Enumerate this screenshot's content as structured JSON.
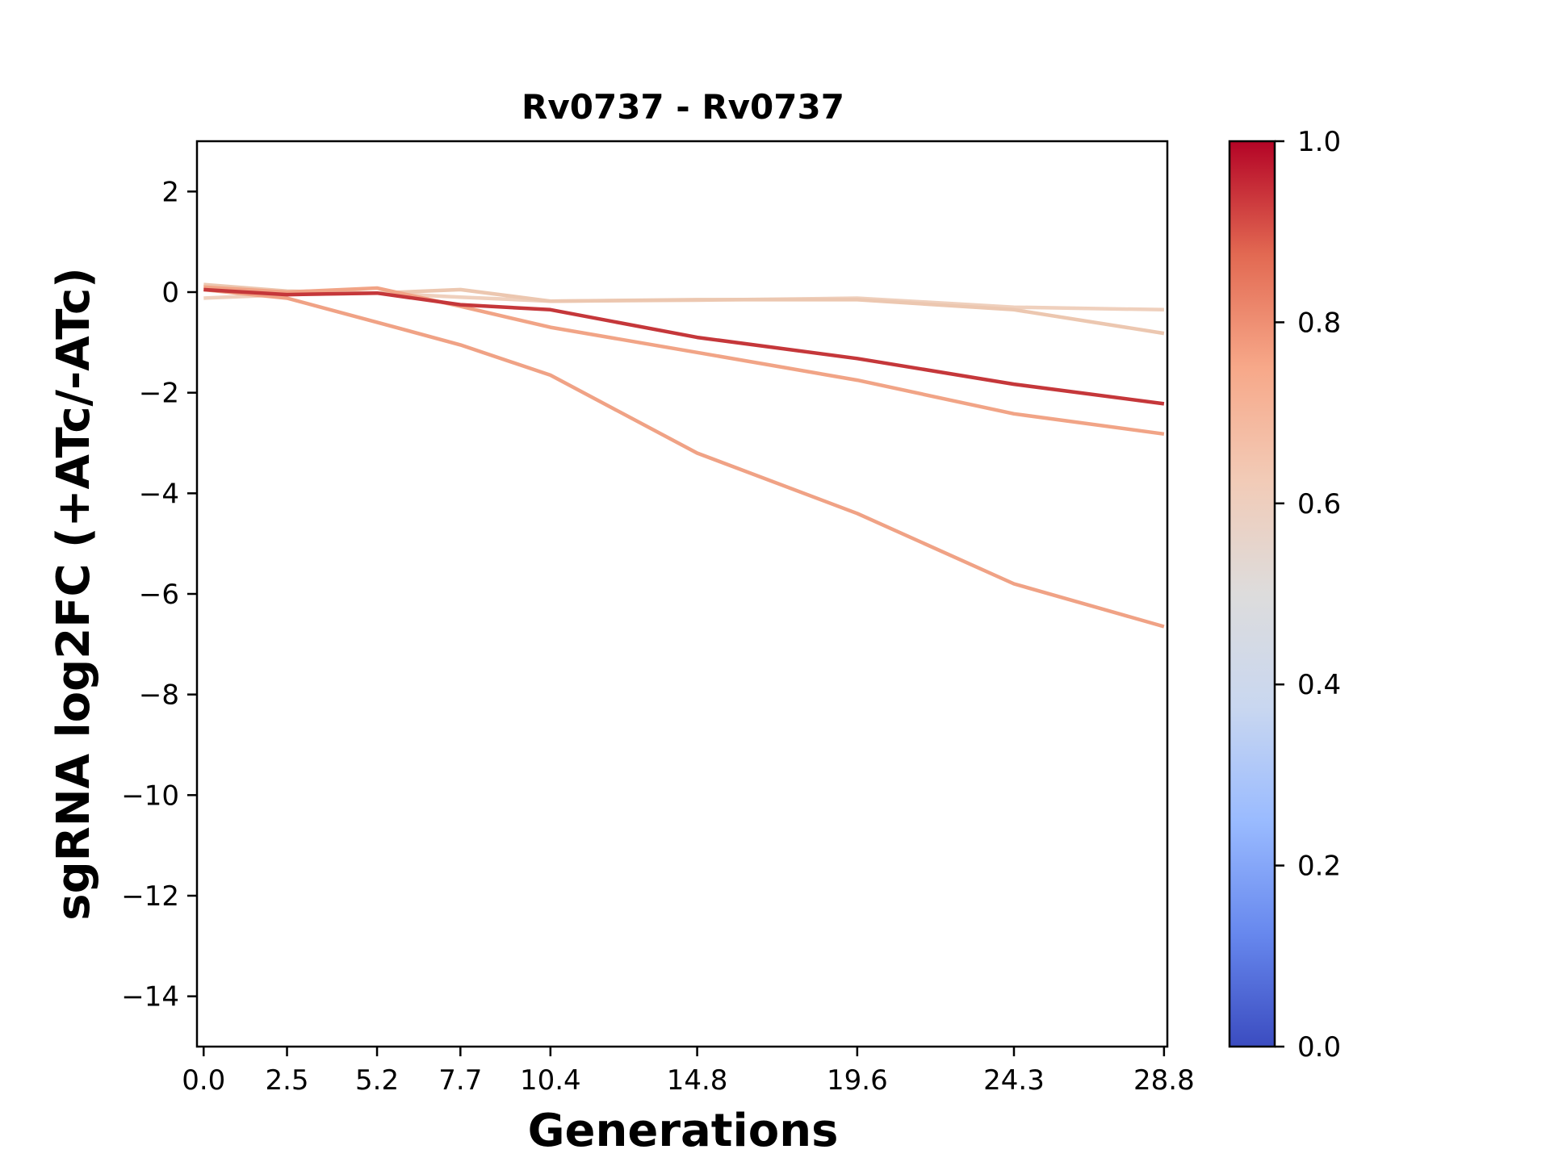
{
  "chart_data": {
    "type": "line",
    "title": "Rv0737 - Rv0737",
    "xlabel": "Generations",
    "ylabel": "sgRNA log2FC (+ATc/-ATc)",
    "x": [
      0.0,
      2.5,
      5.2,
      7.7,
      10.4,
      14.8,
      19.6,
      24.3,
      28.8
    ],
    "x_tick_labels": [
      "0.0",
      "2.5",
      "5.2",
      "7.7",
      "10.4",
      "14.8",
      "19.6",
      "24.3",
      "28.8"
    ],
    "xlim": [
      -0.2,
      28.9
    ],
    "ylim": [
      -15,
      3
    ],
    "y_ticks": [
      2,
      0,
      -2,
      -4,
      -6,
      -8,
      -10,
      -12,
      -14
    ],
    "y_tick_labels": [
      "2",
      "0",
      "−2",
      "−4",
      "−6",
      "−8",
      "−10",
      "−12",
      "−14"
    ],
    "grid": false,
    "series": [
      {
        "colorbar_value": 0.62,
        "color": "#efd0bd",
        "values": [
          -0.12,
          -0.05,
          -0.02,
          -0.1,
          -0.18,
          -0.16,
          -0.12,
          -0.3,
          -0.35
        ]
      },
      {
        "colorbar_value": 0.64,
        "color": "#ecc7b0",
        "values": [
          0.15,
          0.02,
          -0.02,
          0.05,
          -0.18,
          -0.15,
          -0.15,
          -0.35,
          -0.82
        ]
      },
      {
        "colorbar_value": 0.76,
        "color": "#f0a285",
        "values": [
          0.05,
          -0.12,
          -0.6,
          -1.05,
          -1.65,
          -3.2,
          -4.4,
          -5.8,
          -6.65
        ]
      },
      {
        "colorbar_value": 0.75,
        "color": "#f1a486",
        "values": [
          0.1,
          0.0,
          0.08,
          -0.28,
          -0.7,
          -1.2,
          -1.75,
          -2.42,
          -2.82
        ]
      },
      {
        "colorbar_value": 0.92,
        "color": "#c5373a",
        "values": [
          0.05,
          -0.05,
          -0.02,
          -0.25,
          -0.35,
          -0.9,
          -1.32,
          -1.83,
          -2.22
        ]
      }
    ],
    "colorbar": {
      "range": [
        0.0,
        1.0
      ],
      "ticks": [
        0.0,
        0.2,
        0.4,
        0.6,
        0.8,
        1.0
      ],
      "tick_labels": [
        "0.0",
        "0.2",
        "0.4",
        "0.6",
        "0.8",
        "1.0"
      ],
      "colormap_stops": [
        "#3b4cc0",
        "#6788ee",
        "#9abbff",
        "#c9d7f0",
        "#dddcdc",
        "#f2cbb7",
        "#f7a889",
        "#e26952",
        "#b40426"
      ]
    }
  }
}
